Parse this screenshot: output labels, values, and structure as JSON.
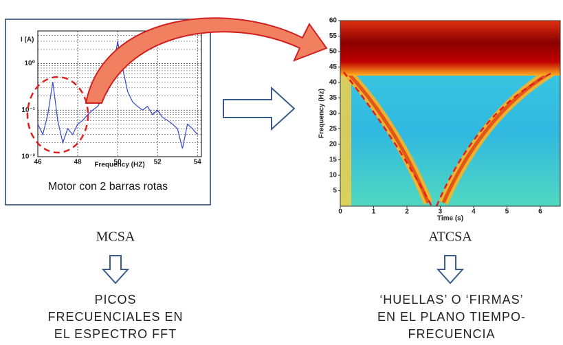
{
  "left_plot": {
    "y_label": "I (A)",
    "x_label": "Frequency (HZ)",
    "caption": "Motor con 2 barras rotas",
    "xlim": [
      46,
      54.2
    ],
    "xticks": [
      46,
      48,
      50,
      52,
      54
    ],
    "ylim": [
      0.01,
      5
    ],
    "log_y": true,
    "yticks": [
      {
        "value": 1,
        "label": "10⁰"
      },
      {
        "value": 0.1,
        "label": "10⁻¹"
      },
      {
        "value": 0.01,
        "label": "10⁻²"
      }
    ],
    "x": [
      46,
      46.25,
      46.5,
      46.75,
      47,
      47.25,
      47.5,
      47.75,
      48,
      48.25,
      48.5,
      48.75,
      49,
      49.25,
      49.5,
      49.75,
      50,
      50.25,
      50.5,
      50.75,
      51,
      51.25,
      51.5,
      51.75,
      52,
      52.25,
      52.5,
      52.75,
      53,
      53.25,
      53.5,
      53.75,
      54
    ],
    "values": [
      0.05,
      0.03,
      0.08,
      0.4,
      0.06,
      0.02,
      0.04,
      0.03,
      0.05,
      0.06,
      0.08,
      0.1,
      0.12,
      0.18,
      0.25,
      0.6,
      3,
      0.8,
      0.25,
      0.15,
      0.12,
      0.1,
      0.12,
      0.08,
      0.1,
      0.07,
      0.06,
      0.05,
      0.04,
      0.015,
      0.05,
      0.04,
      0.03
    ],
    "color": "#3344cc"
  },
  "right_plot": {
    "y_label": "Frequency (Hz)",
    "x_label": "Time (s)",
    "xlim": [
      0,
      6.6
    ],
    "xticks": [
      0,
      1,
      2,
      3,
      4,
      5,
      6
    ],
    "ylim": [
      0,
      60
    ],
    "yticks": [
      5,
      10,
      15,
      20,
      25,
      30,
      35,
      40,
      45,
      50,
      55,
      60
    ]
  },
  "left_title": "MCSA",
  "right_title": "ATCSA",
  "left_text": [
    "PICOS",
    "FRECUENCIALES EN",
    "EL ESPECTRO FFT"
  ],
  "right_text": [
    "‘HUELLAS’ O ‘FIRMAS’",
    "EN EL PLANO TIEMPO-",
    "FRECUENCIA"
  ]
}
